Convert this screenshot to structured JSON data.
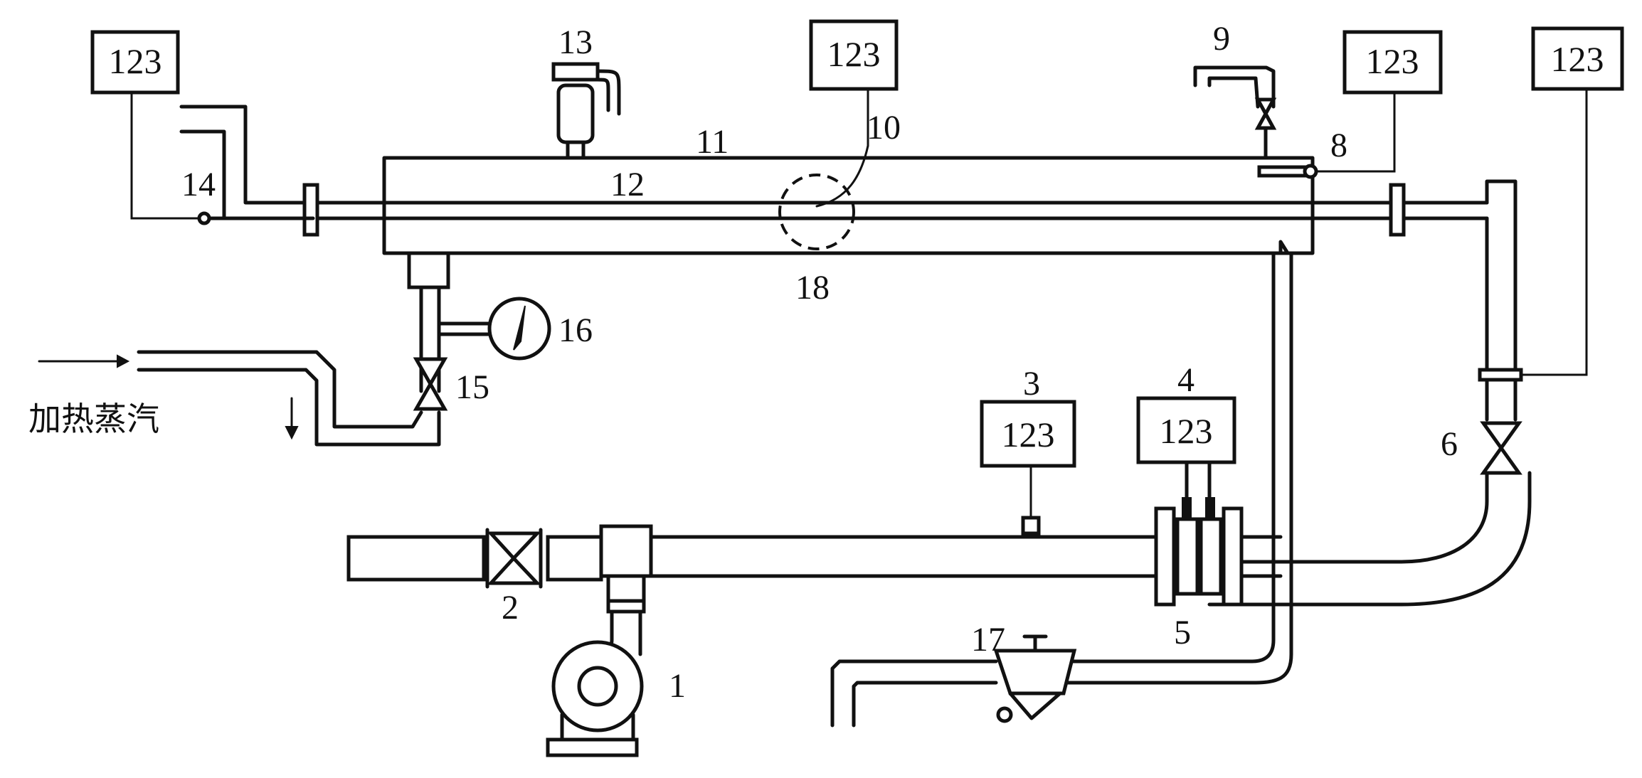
{
  "diagram": {
    "instrument_boxes": [
      {
        "id": "tl",
        "text": "123"
      },
      {
        "id": "tc",
        "text": "123"
      },
      {
        "id": "tr1",
        "text": "123"
      },
      {
        "id": "tr2",
        "text": "123"
      },
      {
        "id": "b3",
        "text": "123"
      },
      {
        "id": "b4",
        "text": "123"
      }
    ],
    "labels": {
      "n1": "1",
      "n2": "2",
      "n3": "3",
      "n4": "4",
      "n5": "5",
      "n6": "6",
      "n8": "8",
      "n9": "9",
      "n10": "10",
      "n11": "11",
      "n12": "12",
      "n13": "13",
      "n14": "14",
      "n15": "15",
      "n16": "16",
      "n17": "17",
      "n18": "18"
    },
    "steam_label": "加热蒸汽"
  }
}
